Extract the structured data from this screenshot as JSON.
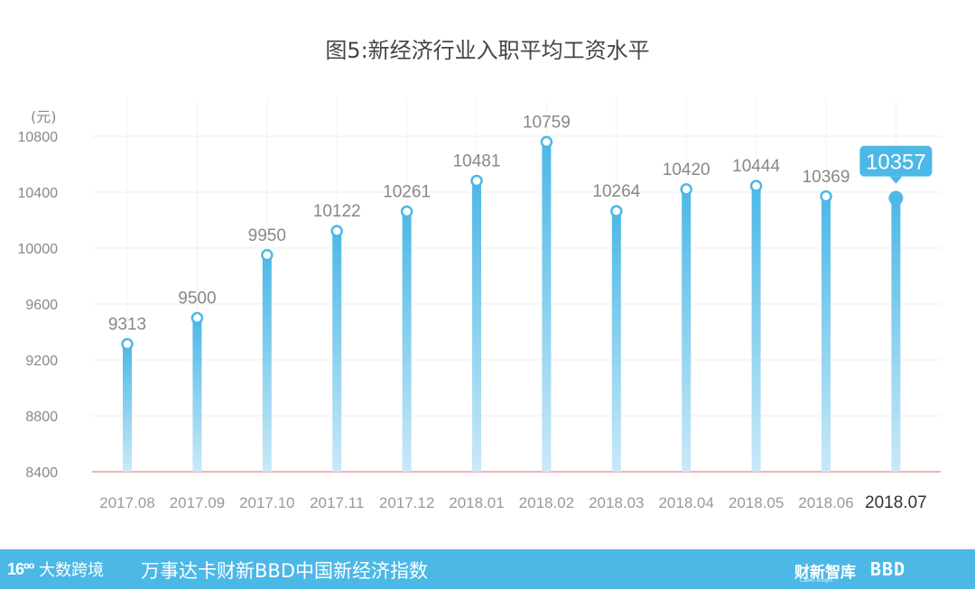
{
  "chart_data": {
    "type": "bar",
    "title": "图5:新经济行业入职平均工资水平",
    "unit": "(元)",
    "categories": [
      "2017.08",
      "2017.09",
      "2017.10",
      "2017.11",
      "2017.12",
      "2018.01",
      "2018.02",
      "2018.03",
      "2018.04",
      "2018.05",
      "2018.06",
      "2018.07"
    ],
    "values": [
      9313,
      9500,
      9950,
      10122,
      10261,
      10481,
      10759,
      10264,
      10420,
      10444,
      10369,
      10357
    ],
    "ylim": [
      8400,
      10800
    ],
    "yticks": [
      8400,
      8800,
      9200,
      9600,
      10000,
      10400,
      10800
    ],
    "highlight_index": 11,
    "grid": true,
    "colors": {
      "bar_top": "#4cb8e6",
      "bar_bottom": "#c9e9f8",
      "baseline": "#f08080",
      "highlight": "#4cb8e6"
    }
  },
  "footer": {
    "logo_mark": "16ºº",
    "logo_name": "大数跨境",
    "text": "万事达卡财新BBD中国新经济指数",
    "brand1": "财新智库",
    "brand1_sub": "Caixin Insight",
    "brand2": "BBD"
  }
}
